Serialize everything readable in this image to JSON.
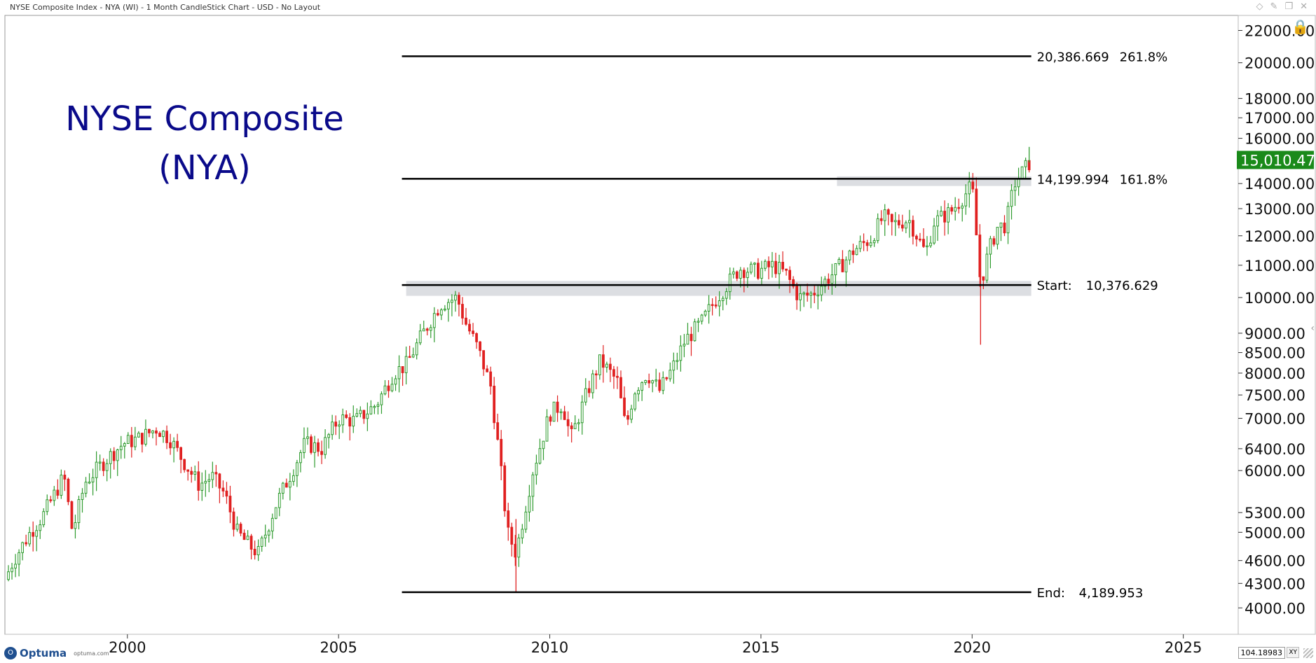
{
  "window": {
    "title": "NYSE Composite Index - NYA (WI) - 1 Month CandleStick Chart - USD - No Layout"
  },
  "footer": {
    "logo_text": "Optuma",
    "logo_url": "optuma.com",
    "coord_value": "104.18983",
    "xy_label": "XY"
  },
  "chart_data": {
    "type": "candlestick",
    "annotation_title": [
      "NYSE Composite",
      "(NYA)"
    ],
    "y_scale": "log",
    "ylim": [
      3700,
      23000
    ],
    "xlim": [
      1997.1,
      2026.3
    ],
    "y_ticks": [
      4000,
      4300,
      4600,
      5000,
      5300,
      6000,
      6400,
      7000,
      7500,
      8000,
      8500,
      9000,
      10000,
      11000,
      12000,
      13000,
      14000,
      16000,
      17000,
      18000,
      20000,
      22000
    ],
    "y_tick_labels": [
      "4000.00",
      "4300.00",
      "4600.00",
      "5000.00",
      "5300.00",
      "6000.00",
      "6400.00",
      "7000.00",
      "7500.00",
      "8000.00",
      "8500.00",
      "9000.00",
      "10000.00",
      "11000.00",
      "12000.00",
      "13000.00",
      "14000.00",
      "16000.00",
      "17000.00",
      "18000.00",
      "20000.00",
      "22000.00"
    ],
    "x_ticks": [
      2000,
      2005,
      2010,
      2015,
      2020,
      2025
    ],
    "x_tick_labels": [
      "2000",
      "2005",
      "2010",
      "2015",
      "2020",
      "2025"
    ],
    "last_price": {
      "value": 15010.47,
      "label": "15,010.47",
      "color": "#1a8a1a"
    },
    "fib_levels": [
      {
        "price": 20386.669,
        "value_label": "20,386.669",
        "pct_label": "261.8%"
      },
      {
        "price": 14199.994,
        "value_label": "14,199.994",
        "pct_label": "161.8%"
      },
      {
        "price": 10376.629,
        "prefix": "Start:",
        "value_label": "10,376.629"
      },
      {
        "price": 4189.953,
        "prefix": "End:",
        "value_label": "4,189.953"
      }
    ],
    "fib_start_x": 2006.5,
    "fib_end_x": 2021.4,
    "shaded_zones": [
      {
        "x0": 2006.6,
        "x1": 2021.4,
        "y0": 10050,
        "y1": 10500
      },
      {
        "x0": 2016.8,
        "x1": 2021.4,
        "y0": 13900,
        "y1": 14300
      }
    ],
    "up_color": "#2e9b2e",
    "down_color": "#e02020",
    "path_points": [
      [
        1997.1,
        4350
      ],
      [
        1997.3,
        4600
      ],
      [
        1997.7,
        5000
      ],
      [
        1998.0,
        5250
      ],
      [
        1998.5,
        5900
      ],
      [
        1998.7,
        5000
      ],
      [
        1999.0,
        5800
      ],
      [
        1999.5,
        6200
      ],
      [
        1999.9,
        6500
      ],
      [
        2000.3,
        6600
      ],
      [
        2000.7,
        6800
      ],
      [
        2001.0,
        6600
      ],
      [
        2001.3,
        6200
      ],
      [
        2001.7,
        5750
      ],
      [
        2002.0,
        5900
      ],
      [
        2002.3,
        5600
      ],
      [
        2002.6,
        5000
      ],
      [
        2002.9,
        4800
      ],
      [
        2003.1,
        4700
      ],
      [
        2003.5,
        5400
      ],
      [
        2003.9,
        6000
      ],
      [
        2004.2,
        6500
      ],
      [
        2004.6,
        6400
      ],
      [
        2005.0,
        7000
      ],
      [
        2005.4,
        6950
      ],
      [
        2005.9,
        7300
      ],
      [
        2006.3,
        8000
      ],
      [
        2006.6,
        8200
      ],
      [
        2007.0,
        9000
      ],
      [
        2007.4,
        9800
      ],
      [
        2007.8,
        10000
      ],
      [
        2008.0,
        9300
      ],
      [
        2008.3,
        8600
      ],
      [
        2008.6,
        7700
      ],
      [
        2008.8,
        6300
      ],
      [
        2009.0,
        5000
      ],
      [
        2009.2,
        4700
      ],
      [
        2009.6,
        6000
      ],
      [
        2010.0,
        7100
      ],
      [
        2010.3,
        7300
      ],
      [
        2010.5,
        6600
      ],
      [
        2010.9,
        7600
      ],
      [
        2011.2,
        8300
      ],
      [
        2011.6,
        7800
      ],
      [
        2011.8,
        6800
      ],
      [
        2012.0,
        7600
      ],
      [
        2012.3,
        8000
      ],
      [
        2012.6,
        7600
      ],
      [
        2012.9,
        8100
      ],
      [
        2013.2,
        8800
      ],
      [
        2013.6,
        9300
      ],
      [
        2013.9,
        9900
      ],
      [
        2014.2,
        10400
      ],
      [
        2014.5,
        10900
      ],
      [
        2014.9,
        10800
      ],
      [
        2015.3,
        11000
      ],
      [
        2015.6,
        10700
      ],
      [
        2015.9,
        10000
      ],
      [
        2016.2,
        10100
      ],
      [
        2016.6,
        10600
      ],
      [
        2016.9,
        11000
      ],
      [
        2017.2,
        11500
      ],
      [
        2017.6,
        11900
      ],
      [
        2017.9,
        12700
      ],
      [
        2018.1,
        12400
      ],
      [
        2018.5,
        12600
      ],
      [
        2018.9,
        11400
      ],
      [
        2019.1,
        12500
      ],
      [
        2019.5,
        12900
      ],
      [
        2019.9,
        13700
      ],
      [
        2020.0,
        13900
      ],
      [
        2020.2,
        10400
      ],
      [
        2020.4,
        11500
      ],
      [
        2020.6,
        12300
      ],
      [
        2020.8,
        12400
      ],
      [
        2021.0,
        14000
      ],
      [
        2021.2,
        14500
      ],
      [
        2021.4,
        15000
      ]
    ]
  }
}
